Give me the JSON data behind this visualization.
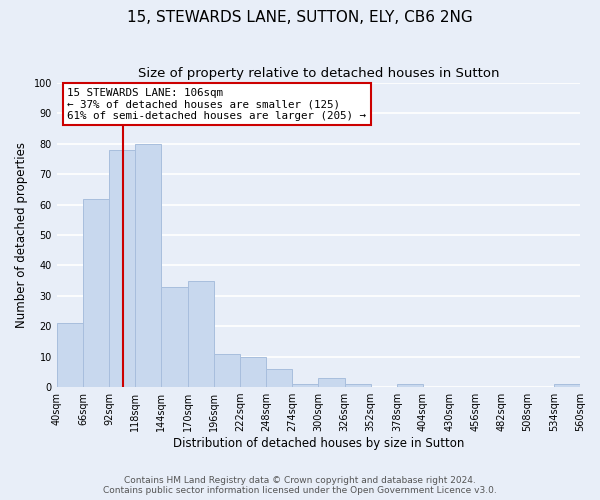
{
  "title": "15, STEWARDS LANE, SUTTON, ELY, CB6 2NG",
  "subtitle": "Size of property relative to detached houses in Sutton",
  "xlabel": "Distribution of detached houses by size in Sutton",
  "ylabel": "Number of detached properties",
  "bar_color": "#c8d8ee",
  "bar_edge_color": "#a8bedd",
  "bin_edges": [
    40,
    66,
    92,
    118,
    144,
    170,
    196,
    222,
    248,
    274,
    300,
    326,
    352,
    378,
    404,
    430,
    456,
    482,
    508,
    534,
    560
  ],
  "bar_heights": [
    21,
    62,
    78,
    80,
    33,
    35,
    11,
    10,
    6,
    1,
    3,
    1,
    0,
    1,
    0,
    0,
    0,
    0,
    0,
    1
  ],
  "tick_labels": [
    "40sqm",
    "66sqm",
    "92sqm",
    "118sqm",
    "144sqm",
    "170sqm",
    "196sqm",
    "222sqm",
    "248sqm",
    "274sqm",
    "300sqm",
    "326sqm",
    "352sqm",
    "378sqm",
    "404sqm",
    "430sqm",
    "456sqm",
    "482sqm",
    "508sqm",
    "534sqm",
    "560sqm"
  ],
  "vline_x": 106,
  "vline_color": "#cc0000",
  "annotation_title": "15 STEWARDS LANE: 106sqm",
  "annotation_line1": "← 37% of detached houses are smaller (125)",
  "annotation_line2": "61% of semi-detached houses are larger (205) →",
  "annotation_box_color": "#ffffff",
  "annotation_box_edge": "#cc0000",
  "ylim": [
    0,
    100
  ],
  "footer1": "Contains HM Land Registry data © Crown copyright and database right 2024.",
  "footer2": "Contains public sector information licensed under the Open Government Licence v3.0.",
  "background_color": "#e8eef8",
  "grid_color": "#ffffff",
  "title_fontsize": 11,
  "subtitle_fontsize": 9.5,
  "axis_label_fontsize": 8.5,
  "tick_fontsize": 7,
  "footer_fontsize": 6.5
}
